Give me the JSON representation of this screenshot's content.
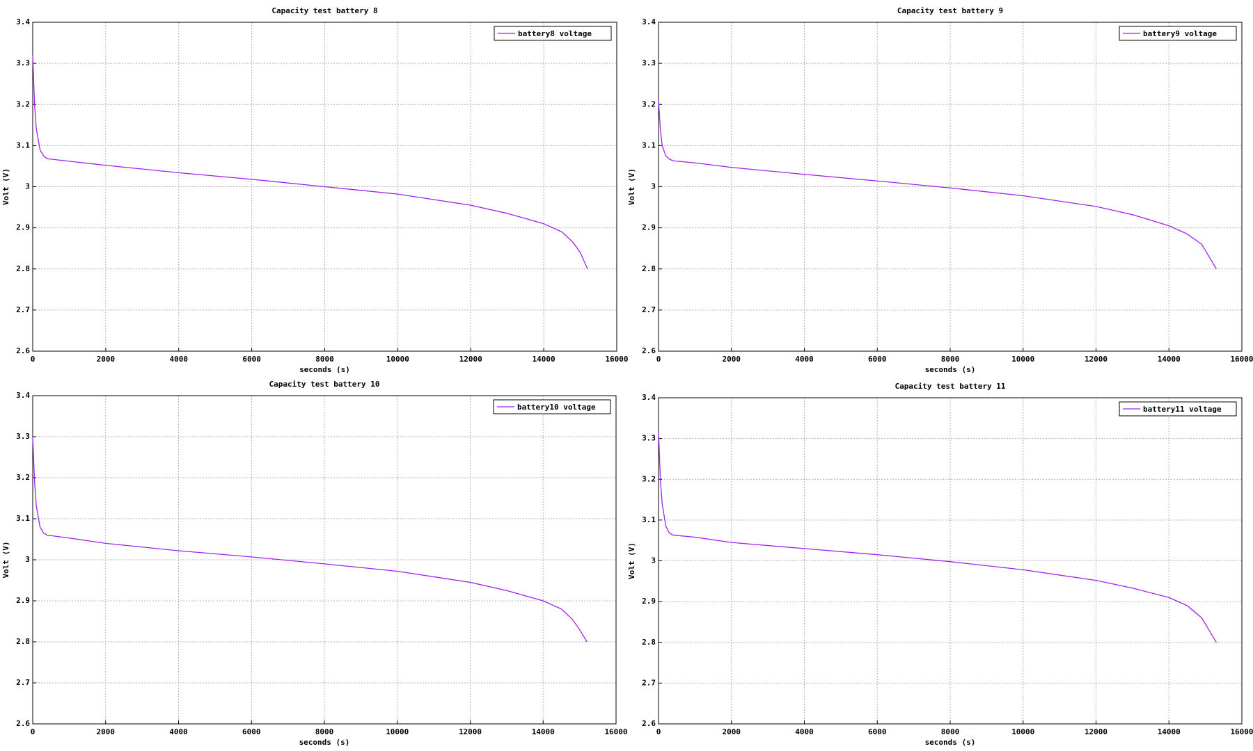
{
  "chart_data": [
    {
      "type": "line",
      "title": "Capacity test battery 8",
      "xlabel": "seconds (s)",
      "ylabel": "Volt (V)",
      "x": [
        0,
        50,
        100,
        200,
        300,
        400,
        1000,
        2000,
        4000,
        6000,
        8000,
        10000,
        12000,
        13000,
        14000,
        14500,
        14800,
        15000,
        15200
      ],
      "series": [
        {
          "name": "battery8 voltage",
          "color": "#a020f0",
          "values": [
            3.32,
            3.2,
            3.14,
            3.09,
            3.075,
            3.068,
            3.062,
            3.052,
            3.034,
            3.018,
            3.0,
            2.982,
            2.955,
            2.935,
            2.91,
            2.89,
            2.865,
            2.84,
            2.8
          ]
        }
      ],
      "xlim": [
        0,
        16000
      ],
      "xticks": [
        0,
        2000,
        4000,
        6000,
        8000,
        10000,
        12000,
        14000,
        16000
      ],
      "ylim": [
        2.6,
        3.4
      ],
      "yticks": [
        2.6,
        2.7,
        2.8,
        2.9,
        3,
        3.1,
        3.2,
        3.3,
        3.4
      ],
      "grid": true,
      "legend": "upper right"
    },
    {
      "type": "line",
      "title": "Capacity test battery 9",
      "xlabel": "seconds (s)",
      "ylabel": "Volt (V)",
      "x": [
        0,
        50,
        100,
        200,
        300,
        400,
        1000,
        2000,
        4000,
        6000,
        8000,
        10000,
        12000,
        13000,
        14000,
        14500,
        14900,
        15100,
        15300
      ],
      "series": [
        {
          "name": "battery9 voltage",
          "color": "#a020f0",
          "values": [
            3.21,
            3.14,
            3.1,
            3.075,
            3.067,
            3.063,
            3.058,
            3.047,
            3.03,
            3.014,
            2.997,
            2.978,
            2.952,
            2.932,
            2.905,
            2.885,
            2.86,
            2.83,
            2.8
          ]
        }
      ],
      "xlim": [
        0,
        16000
      ],
      "xticks": [
        0,
        2000,
        4000,
        6000,
        8000,
        10000,
        12000,
        14000,
        16000
      ],
      "ylim": [
        2.6,
        3.4
      ],
      "yticks": [
        2.6,
        2.7,
        2.8,
        2.9,
        3,
        3.1,
        3.2,
        3.3,
        3.4
      ],
      "grid": true,
      "legend": "upper right"
    },
    {
      "type": "line",
      "title": "Capacity test battery 10",
      "xlabel": "seconds (s)",
      "ylabel": "Volt (V)",
      "x": [
        0,
        50,
        100,
        200,
        300,
        400,
        1000,
        2000,
        4000,
        6000,
        8000,
        10000,
        12000,
        13000,
        14000,
        14500,
        14800,
        15000,
        15200
      ],
      "series": [
        {
          "name": "battery10 voltage",
          "color": "#a020f0",
          "values": [
            3.3,
            3.19,
            3.13,
            3.08,
            3.065,
            3.06,
            3.053,
            3.04,
            3.022,
            3.007,
            2.99,
            2.972,
            2.945,
            2.925,
            2.9,
            2.88,
            2.855,
            2.83,
            2.8
          ]
        }
      ],
      "xlim": [
        0,
        16000
      ],
      "xticks": [
        0,
        2000,
        4000,
        6000,
        8000,
        10000,
        12000,
        14000,
        16000
      ],
      "ylim": [
        2.6,
        3.4
      ],
      "yticks": [
        2.6,
        2.7,
        2.8,
        2.9,
        3,
        3.1,
        3.2,
        3.3,
        3.4
      ],
      "grid": true,
      "legend": "upper right"
    },
    {
      "type": "line",
      "title": "Capacity test battery 11",
      "xlabel": "seconds (s)",
      "ylabel": "Volt (V)",
      "x": [
        0,
        50,
        100,
        200,
        300,
        400,
        1000,
        2000,
        4000,
        6000,
        8000,
        10000,
        12000,
        13000,
        14000,
        14500,
        14900,
        15100,
        15300
      ],
      "series": [
        {
          "name": "battery11 voltage",
          "color": "#a020f0",
          "values": [
            3.32,
            3.2,
            3.14,
            3.085,
            3.068,
            3.063,
            3.058,
            3.045,
            3.03,
            3.015,
            2.998,
            2.978,
            2.952,
            2.933,
            2.91,
            2.89,
            2.86,
            2.83,
            2.8
          ]
        }
      ],
      "xlim": [
        0,
        16000
      ],
      "xticks": [
        0,
        2000,
        4000,
        6000,
        8000,
        10000,
        12000,
        14000,
        16000
      ],
      "ylim": [
        2.6,
        3.4
      ],
      "yticks": [
        2.6,
        2.7,
        2.8,
        2.9,
        3,
        3.1,
        3.2,
        3.3,
        3.4
      ],
      "grid": true,
      "legend": "upper right"
    }
  ]
}
